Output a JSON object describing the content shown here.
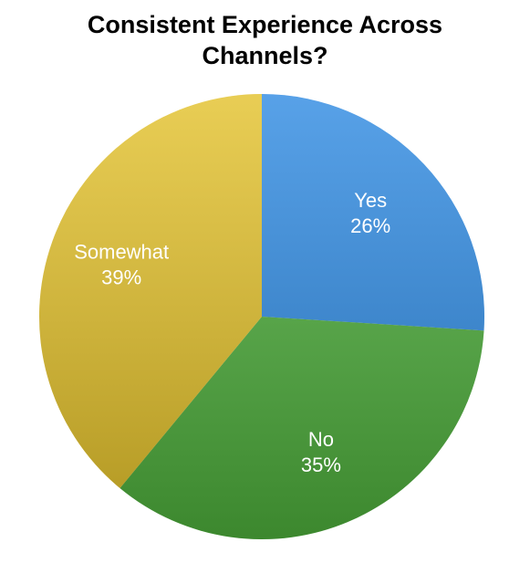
{
  "chart_data": {
    "type": "pie",
    "title": "Consistent Experience Across Channels?",
    "categories": [
      "Yes",
      "No",
      "Somewhat"
    ],
    "values": [
      26,
      35,
      39
    ],
    "value_labels": [
      "26%",
      "35%",
      "39%"
    ],
    "colors": [
      "#2e8ae2",
      "#4dae3b",
      "#e3c12a"
    ]
  }
}
